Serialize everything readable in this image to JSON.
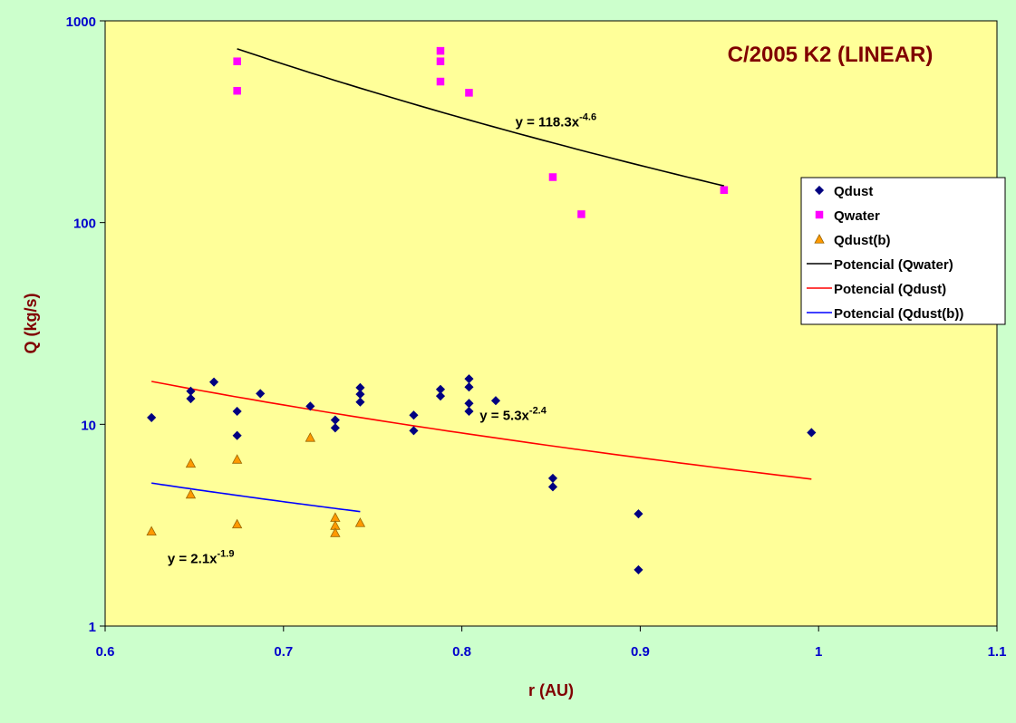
{
  "chart_data": {
    "type": "scatter",
    "title": "C/2005 K2 (LINEAR)",
    "xlabel": "r (AU)",
    "ylabel": "Q (kg/s)",
    "xlim": [
      0.6,
      1.1
    ],
    "ylim": [
      1,
      1000
    ],
    "yscale": "log",
    "grid": false,
    "legend_position": "right",
    "x_ticks": [
      "0.6",
      "0.7",
      "0.8",
      "0.9",
      "1",
      "1.1"
    ],
    "y_ticks": [
      "1",
      "10",
      "100",
      "1000"
    ],
    "colors": {
      "figure_background": "#ccffcc",
      "plot_background": "#ffff99",
      "title": "#800000",
      "axis_label": "#800000",
      "tick_label": "#0000cc"
    },
    "series": [
      {
        "name": "Qdust",
        "kind": "points",
        "marker": "diamond",
        "color": "#000080",
        "points": [
          [
            0.626,
            10.8
          ],
          [
            0.648,
            14.6
          ],
          [
            0.648,
            13.4
          ],
          [
            0.661,
            16.2
          ],
          [
            0.674,
            11.6
          ],
          [
            0.674,
            8.8
          ],
          [
            0.687,
            14.2
          ],
          [
            0.715,
            12.3
          ],
          [
            0.729,
            10.5
          ],
          [
            0.729,
            9.6
          ],
          [
            0.743,
            15.2
          ],
          [
            0.743,
            14.1
          ],
          [
            0.743,
            12.9
          ],
          [
            0.773,
            11.1
          ],
          [
            0.773,
            9.3
          ],
          [
            0.788,
            14.9
          ],
          [
            0.788,
            13.8
          ],
          [
            0.804,
            16.8
          ],
          [
            0.804,
            15.3
          ],
          [
            0.804,
            12.7
          ],
          [
            0.804,
            11.6
          ],
          [
            0.819,
            13.1
          ],
          [
            0.851,
            5.4
          ],
          [
            0.851,
            4.9
          ],
          [
            0.899,
            3.6
          ],
          [
            0.899,
            1.9
          ],
          [
            0.996,
            9.1
          ]
        ]
      },
      {
        "name": "Qwater",
        "kind": "points",
        "marker": "square",
        "color": "#ff00ff",
        "points": [
          [
            0.674,
            630
          ],
          [
            0.674,
            450
          ],
          [
            0.788,
            710
          ],
          [
            0.788,
            630
          ],
          [
            0.788,
            500
          ],
          [
            0.804,
            440
          ],
          [
            0.851,
            168
          ],
          [
            0.867,
            110
          ],
          [
            0.947,
            145
          ]
        ]
      },
      {
        "name": "Qdust(b)",
        "kind": "points",
        "marker": "triangle",
        "color": "#ff9900",
        "points": [
          [
            0.626,
            2.95
          ],
          [
            0.648,
            6.4
          ],
          [
            0.648,
            4.5
          ],
          [
            0.674,
            6.7
          ],
          [
            0.674,
            3.2
          ],
          [
            0.715,
            8.6
          ],
          [
            0.729,
            3.45
          ],
          [
            0.729,
            3.15
          ],
          [
            0.729,
            2.9
          ],
          [
            0.743,
            3.25
          ]
        ]
      },
      {
        "name": "Potencial (Qwater)",
        "kind": "trendline",
        "color": "#000000",
        "coefficient": 118.3,
        "exponent": -4.6,
        "x_range": [
          0.674,
          0.947
        ]
      },
      {
        "name": "Potencial (Qdust)",
        "kind": "trendline",
        "color": "#ff0000",
        "coefficient": 5.3,
        "exponent": -2.4,
        "x_range": [
          0.626,
          0.996
        ]
      },
      {
        "name": "Potencial (Qdust(b))",
        "kind": "trendline",
        "color": "#0000ff",
        "coefficient": 2.1,
        "exponent": -1.9,
        "x_range": [
          0.626,
          0.743
        ]
      }
    ],
    "annotations": [
      {
        "base": "y = 118.3x",
        "sup": "-4.6",
        "anchor": [
          0.83,
          300
        ]
      },
      {
        "base": "y = 5.3x",
        "sup": "-2.4",
        "anchor": [
          0.81,
          10.5
        ]
      },
      {
        "base": "y = 2.1x",
        "sup": "-1.9",
        "anchor": [
          0.635,
          2.05
        ]
      }
    ]
  }
}
